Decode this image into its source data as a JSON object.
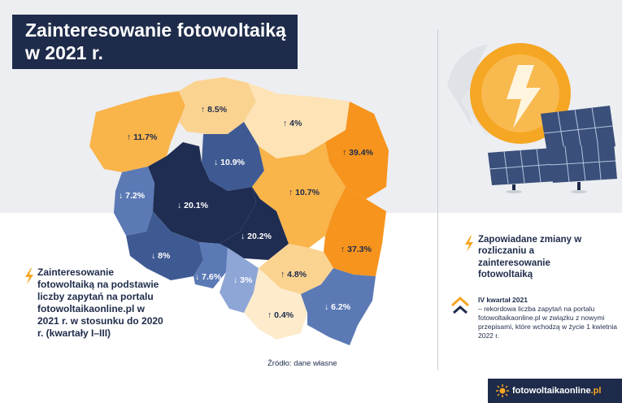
{
  "title": {
    "line1": "Zainteresowanie fotowoltaiką",
    "line2": "w 2021 r."
  },
  "regions": [
    {
      "id": "zachodniopomorskie",
      "arrow": "↑",
      "value": "11.7%",
      "label": "↑ 11.7%"
    },
    {
      "id": "pomorskie",
      "arrow": "↑",
      "value": "8.5%",
      "label": "↑ 8.5%"
    },
    {
      "id": "warminsko-mazurskie",
      "arrow": "↑",
      "value": "4%",
      "label": "↑ 4%"
    },
    {
      "id": "podlaskie",
      "arrow": "↑",
      "value": "39.4%",
      "label": "↑ 39.4%"
    },
    {
      "id": "kujawsko-pomorskie",
      "arrow": "↓",
      "value": "10.9%",
      "label": "↓ 10.9%"
    },
    {
      "id": "lubuskie",
      "arrow": "↓",
      "value": "7.2%",
      "label": "↓ 7.2%"
    },
    {
      "id": "wielkopolskie",
      "arrow": "↓",
      "value": "20.1%",
      "label": "↓ 20.1%"
    },
    {
      "id": "mazowieckie",
      "arrow": "↑",
      "value": "10.7%",
      "label": "↑ 10.7%"
    },
    {
      "id": "lodzkie",
      "arrow": "↓",
      "value": "20.2%",
      "label": "↓ 20.2%"
    },
    {
      "id": "lubelskie",
      "arrow": "↑",
      "value": "37.3%",
      "label": "↑ 37.3%"
    },
    {
      "id": "dolnoslaskie",
      "arrow": "↓",
      "value": "8%",
      "label": "↓ 8%"
    },
    {
      "id": "opolskie",
      "arrow": "↓",
      "value": "7.6%",
      "label": "↓ 7.6%"
    },
    {
      "id": "slaskie",
      "arrow": "↓",
      "value": "3%",
      "label": "↓ 3%"
    },
    {
      "id": "swietokrzyskie",
      "arrow": "↑",
      "value": "4.8%",
      "label": "↑ 4.8%"
    },
    {
      "id": "malopolskie",
      "arrow": "↑",
      "value": "0.4%",
      "label": "↑ 0.4%"
    },
    {
      "id": "podkarpackie",
      "arrow": "↓",
      "value": "6.2%",
      "label": "↓ 6.2%"
    }
  ],
  "legend_left": "Zainteresowanie fotowoltaiką na podstawie liczby zapytań na portalu fotowoltaikaonline.pl w 2021 r. w stosunku do 2020 r. (kwartały I–III)",
  "source": "Źródło: dane własne",
  "note_right": "Zapowiadane zmiany w rozliczaniu a zainteresowanie fotowoltaiką",
  "quarter": {
    "title": "IV kwartał 2021",
    "text": "– rekordowa liczba zapytań na portalu fotowoltaikaonline.pl w związku z nowymi przepisami, które wchodzą w życie 1 kwietnia 2022 r."
  },
  "brand": {
    "name": "fotowoltaikaonline",
    "tld": ".pl"
  },
  "colors": {
    "navy": "#1e2b4a",
    "dark_blue": "#1f2d52",
    "mid_blue": "#3f5a92",
    "steel_blue": "#5b79b5",
    "light_blue": "#8ea6d6",
    "orange": "#f7941d",
    "light_orange": "#f9b44a",
    "sand": "#fbd391",
    "pale_sand": "#fde3b5",
    "cream": "#fdebcc"
  },
  "icons": [
    "lightning-bolt-icon",
    "sun-panel-illustration-icon",
    "double-chevron-up-icon",
    "sun-logo-icon"
  ]
}
